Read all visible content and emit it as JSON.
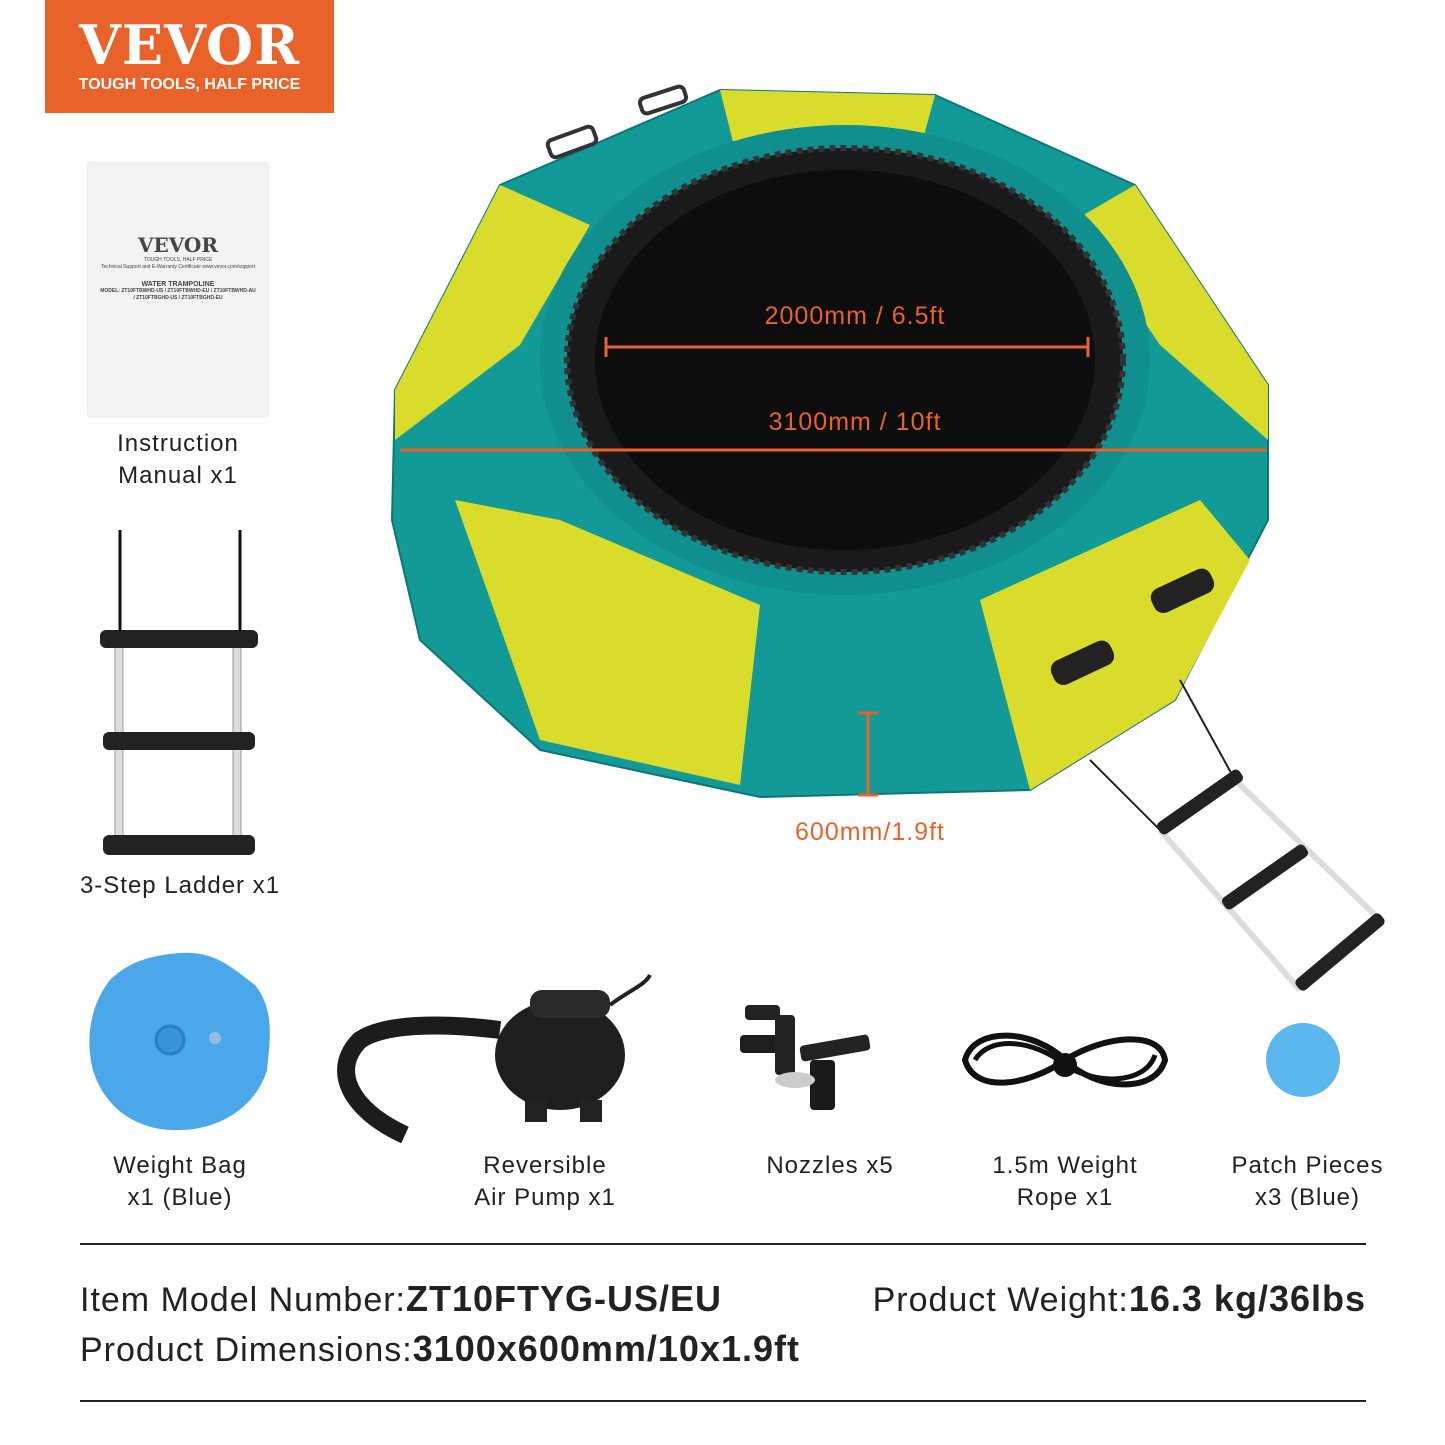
{
  "brand": {
    "name": "VEVOR",
    "tagline": "TOUGH TOOLS, HALF PRICE",
    "color": "#e8622a"
  },
  "manual_cover": {
    "brand": "VEVOR",
    "tagline": "TOUGH TOOLS, HALF PRICE",
    "support": "Technical Support and E-Warranty Certificate www.vevor.com/support",
    "title": "WATER TRAMPOLINE",
    "models": "MODEL: ZT10FTBWHD-US / ZT10FTBWHD-EU / ZT10FTBWHD-AU / ZT10FTBGHD-US / ZT10FTBGHD-EU"
  },
  "dimensions": {
    "mat": "2000mm / 6.5ft",
    "diameter": "3100mm / 10ft",
    "height": "600mm/1.9ft"
  },
  "colors": {
    "teal": "#119a98",
    "yellow": "#d9dc2a",
    "accent": "#e8622a"
  },
  "accessories": [
    {
      "line1": "Instruction",
      "line2": "Manual x1"
    },
    {
      "line1": "3-Step Ladder x1",
      "line2": ""
    },
    {
      "line1": "Weight Bag",
      "line2": "x1 (Blue)"
    },
    {
      "line1": "Reversible",
      "line2": "Air Pump x1"
    },
    {
      "line1": "Nozzles x5",
      "line2": ""
    },
    {
      "line1": "1.5m Weight",
      "line2": "Rope x1"
    },
    {
      "line1": "Patch Pieces",
      "line2": "x3 (Blue)"
    }
  ],
  "specs": {
    "model_label": "Item Model Number:",
    "model_value": "ZT10FTYG-US/EU",
    "weight_label": "Product Weight:",
    "weight_value": "16.3 kg/36lbs",
    "dims_label": "Product Dimensions:",
    "dims_value": "3100x600mm/10x1.9ft"
  }
}
